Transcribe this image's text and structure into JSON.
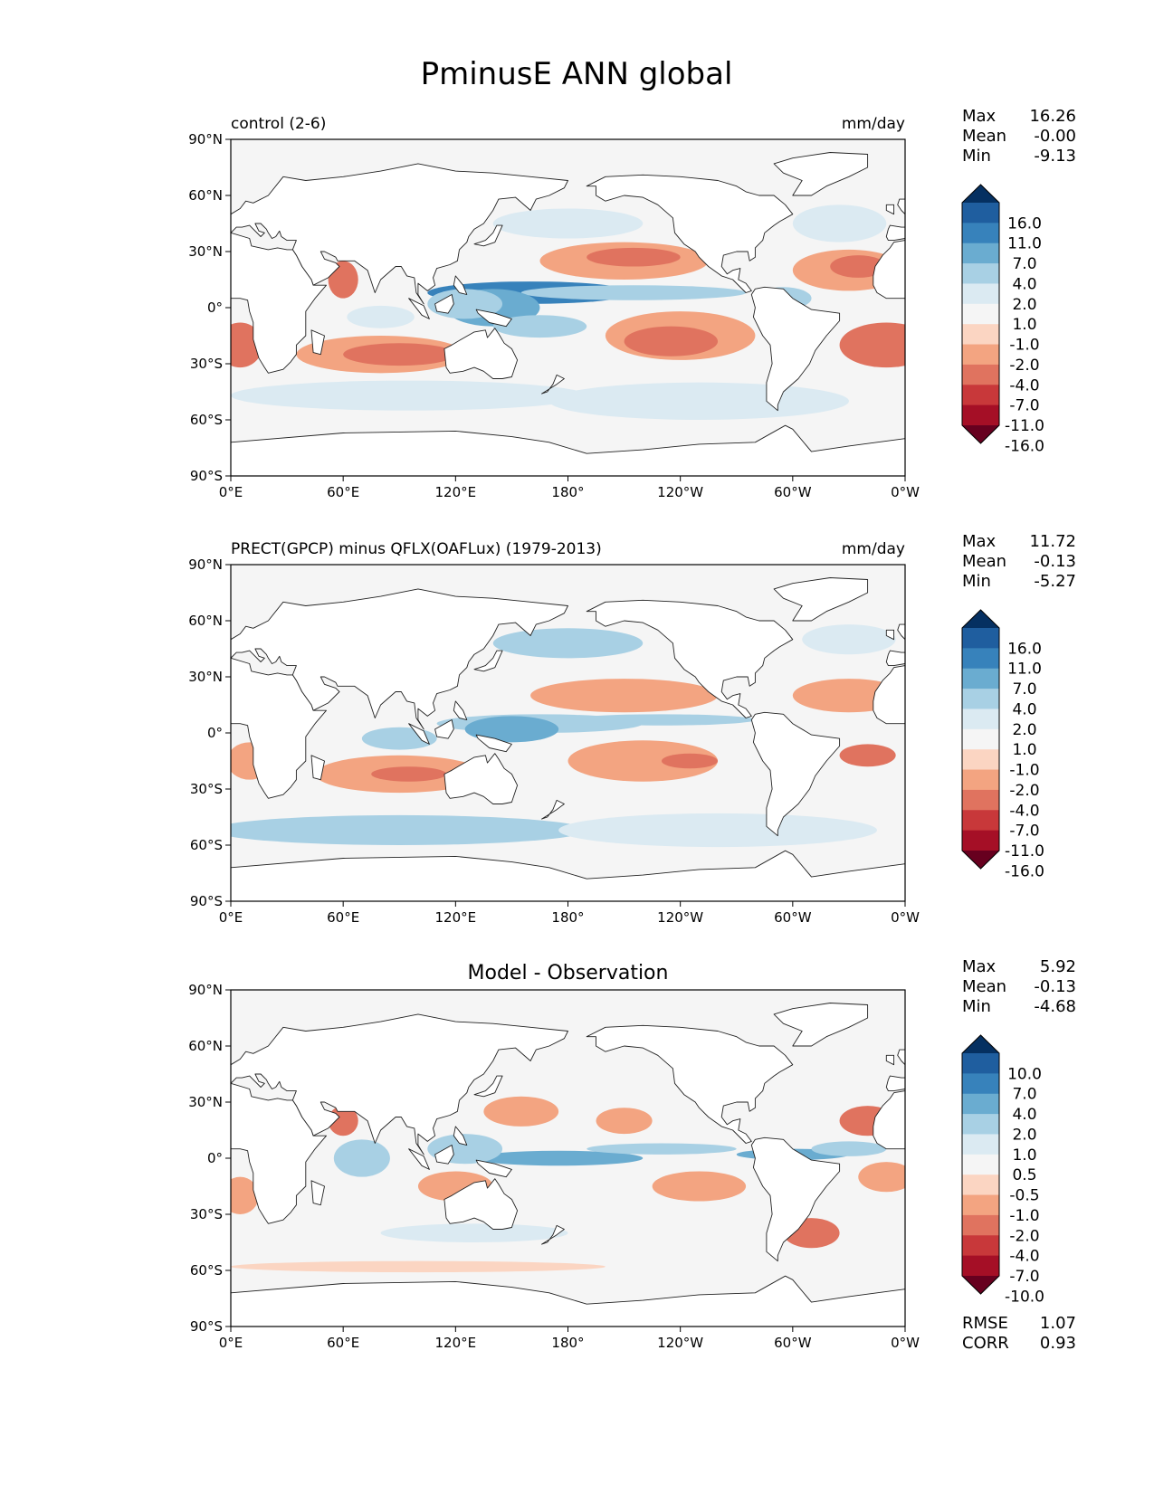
{
  "figure": {
    "title": "PminusE ANN global"
  },
  "colors": {
    "ocean_bg": "#f5f5f5",
    "land": "#ffffff",
    "coast": "#222222",
    "ramp": [
      "#67001f",
      "#a50f26",
      "#c8383a",
      "#e0735f",
      "#f3a481",
      "#fbd5c2",
      "#f5f5f5",
      "#dbeaf2",
      "#a8d0e4",
      "#6aacd0",
      "#3782bb",
      "#1f5e9f",
      "#053061"
    ]
  },
  "x_ticks": [
    "0°E",
    "60°E",
    "120°E",
    "180°",
    "120°W",
    "60°W",
    "0°W"
  ],
  "y_ticks": [
    "90°N",
    "60°N",
    "30°N",
    "0°",
    "30°S",
    "60°S",
    "90°S"
  ],
  "panels": [
    {
      "id": "control",
      "left_title": "control (2-6)",
      "center_title": "",
      "units": "mm/day",
      "stats": [
        [
          "Max",
          "16.26"
        ],
        [
          "Mean",
          "-0.00"
        ],
        [
          "Min",
          "-9.13"
        ]
      ],
      "colorbar": [
        "16.0",
        "11.0",
        "7.0",
        "4.0",
        "2.0",
        "1.0",
        "-1.0",
        "-2.0",
        "-4.0",
        "-7.0",
        "-11.0",
        "-16.0"
      ],
      "extra": []
    },
    {
      "id": "obs",
      "left_title": "PRECT(GPCP) minus QFLX(OAFLux) (1979-2013)",
      "center_title": "",
      "units": "mm/day",
      "stats": [
        [
          "Max",
          "11.72"
        ],
        [
          "Mean",
          "-0.13"
        ],
        [
          "Min",
          "-5.27"
        ]
      ],
      "colorbar": [
        "16.0",
        "11.0",
        "7.0",
        "4.0",
        "2.0",
        "1.0",
        "-1.0",
        "-2.0",
        "-4.0",
        "-7.0",
        "-11.0",
        "-16.0"
      ],
      "extra": []
    },
    {
      "id": "diff",
      "left_title": "",
      "center_title": "Model - Observation",
      "units": "",
      "stats": [
        [
          "Max",
          "5.92"
        ],
        [
          "Mean",
          "-0.13"
        ],
        [
          "Min",
          "-4.68"
        ]
      ],
      "colorbar": [
        "10.0",
        "7.0",
        "4.0",
        "2.0",
        "1.0",
        "0.5",
        "-0.5",
        "-1.0",
        "-2.0",
        "-4.0",
        "-7.0",
        "-10.0"
      ],
      "extra": [
        [
          "RMSE",
          "1.07"
        ],
        [
          "CORR",
          "0.93"
        ]
      ]
    }
  ],
  "chart_data": {
    "type": "heatmap",
    "title": "PminusE ANN global",
    "variable": "PminusE",
    "units": "mm/day",
    "xlim": [
      0,
      360
    ],
    "ylim": [
      -90,
      90
    ],
    "xticks": [
      0,
      60,
      120,
      180,
      240,
      300,
      360
    ],
    "yticks": [
      90,
      60,
      30,
      0,
      -30,
      -60,
      -90
    ],
    "panels": [
      {
        "name": "control (2-6)",
        "max": 16.26,
        "mean": -0.0,
        "min": -9.13,
        "levels": [
          -16,
          -11,
          -7,
          -4,
          -2,
          -1,
          1,
          2,
          4,
          7,
          11,
          16
        ],
        "features": [
          {
            "lon": 160,
            "lat": 8,
            "rx": 55,
            "ry": 6,
            "level": 4
          },
          {
            "lon": 215,
            "lat": 8,
            "rx": 60,
            "ry": 4,
            "level": 2
          },
          {
            "lon": 140,
            "lat": 0,
            "rx": 25,
            "ry": 10,
            "level": 3
          },
          {
            "lon": 125,
            "lat": 2,
            "rx": 20,
            "ry": 8,
            "level": 2
          },
          {
            "lon": 80,
            "lat": -5,
            "rx": 18,
            "ry": 6,
            "level": 1
          },
          {
            "lon": 165,
            "lat": -10,
            "rx": 25,
            "ry": 6,
            "level": 2
          },
          {
            "lon": 95,
            "lat": -47,
            "rx": 95,
            "ry": 8,
            "level": 1
          },
          {
            "lon": 250,
            "lat": -50,
            "rx": 80,
            "ry": 10,
            "level": 1
          },
          {
            "lon": 180,
            "lat": 45,
            "rx": 40,
            "ry": 8,
            "level": 1
          },
          {
            "lon": 325,
            "lat": 45,
            "rx": 25,
            "ry": 10,
            "level": 1
          },
          {
            "lon": 295,
            "lat": 5,
            "rx": 15,
            "ry": 6,
            "level": 2
          },
          {
            "lon": 210,
            "lat": 25,
            "rx": 45,
            "ry": 10,
            "level": -2
          },
          {
            "lon": 215,
            "lat": 27,
            "rx": 25,
            "ry": 5,
            "level": -3
          },
          {
            "lon": 240,
            "lat": -15,
            "rx": 40,
            "ry": 13,
            "level": -2
          },
          {
            "lon": 235,
            "lat": -18,
            "rx": 25,
            "ry": 8,
            "level": -3
          },
          {
            "lon": 330,
            "lat": 20,
            "rx": 30,
            "ry": 11,
            "level": -2
          },
          {
            "lon": 335,
            "lat": 22,
            "rx": 15,
            "ry": 6,
            "level": -3
          },
          {
            "lon": 350,
            "lat": -20,
            "rx": 25,
            "ry": 12,
            "level": -3
          },
          {
            "lon": 5,
            "lat": -20,
            "rx": 12,
            "ry": 12,
            "level": -3
          },
          {
            "lon": 80,
            "lat": -25,
            "rx": 45,
            "ry": 10,
            "level": -2
          },
          {
            "lon": 90,
            "lat": -25,
            "rx": 30,
            "ry": 6,
            "level": -3
          },
          {
            "lon": 60,
            "lat": 15,
            "rx": 8,
            "ry": 10,
            "level": -3
          },
          {
            "lon": 40,
            "lat": 20,
            "rx": 5,
            "ry": 6,
            "level": -4
          }
        ]
      },
      {
        "name": "PRECT(GPCP) minus QFLX(OAFLux) (1979-2013)",
        "max": 11.72,
        "mean": -0.13,
        "min": -5.27,
        "levels": [
          -16,
          -11,
          -7,
          -4,
          -2,
          -1,
          1,
          2,
          4,
          7,
          11,
          16
        ],
        "features": [
          {
            "lon": 165,
            "lat": 5,
            "rx": 55,
            "ry": 5,
            "level": 2
          },
          {
            "lon": 230,
            "lat": 7,
            "rx": 50,
            "ry": 3,
            "level": 2
          },
          {
            "lon": 150,
            "lat": 2,
            "rx": 25,
            "ry": 7,
            "level": 3
          },
          {
            "lon": 90,
            "lat": -3,
            "rx": 20,
            "ry": 6,
            "level": 2
          },
          {
            "lon": 90,
            "lat": -52,
            "rx": 100,
            "ry": 8,
            "level": 2
          },
          {
            "lon": 260,
            "lat": -52,
            "rx": 85,
            "ry": 9,
            "level": 1
          },
          {
            "lon": 180,
            "lat": 48,
            "rx": 40,
            "ry": 8,
            "level": 2
          },
          {
            "lon": 330,
            "lat": 50,
            "rx": 25,
            "ry": 8,
            "level": 1
          },
          {
            "lon": 210,
            "lat": 20,
            "rx": 50,
            "ry": 9,
            "level": -2
          },
          {
            "lon": 220,
            "lat": -15,
            "rx": 40,
            "ry": 11,
            "level": -2
          },
          {
            "lon": 245,
            "lat": -15,
            "rx": 15,
            "ry": 4,
            "level": -3
          },
          {
            "lon": 330,
            "lat": 20,
            "rx": 30,
            "ry": 9,
            "level": -2
          },
          {
            "lon": 340,
            "lat": -12,
            "rx": 15,
            "ry": 6,
            "level": -3
          },
          {
            "lon": 90,
            "lat": -22,
            "rx": 45,
            "ry": 10,
            "level": -2
          },
          {
            "lon": 95,
            "lat": -22,
            "rx": 20,
            "ry": 4,
            "level": -3
          },
          {
            "lon": 10,
            "lat": -15,
            "rx": 12,
            "ry": 10,
            "level": -2
          }
        ]
      },
      {
        "name": "Model - Observation",
        "max": 5.92,
        "mean": -0.13,
        "min": -4.68,
        "rmse": 1.07,
        "corr": 0.93,
        "levels": [
          -10,
          -7,
          -4,
          -2,
          -1,
          -0.5,
          0.5,
          1,
          2,
          4,
          7,
          10
        ],
        "features": [
          {
            "lon": 175,
            "lat": 0,
            "rx": 45,
            "ry": 4,
            "level": 3
          },
          {
            "lon": 230,
            "lat": 5,
            "rx": 40,
            "ry": 3,
            "level": 2
          },
          {
            "lon": 300,
            "lat": 2,
            "rx": 30,
            "ry": 3,
            "level": 3
          },
          {
            "lon": 70,
            "lat": 0,
            "rx": 15,
            "ry": 10,
            "level": 2
          },
          {
            "lon": 125,
            "lat": 5,
            "rx": 20,
            "ry": 8,
            "level": 2
          },
          {
            "lon": 330,
            "lat": 5,
            "rx": 20,
            "ry": 4,
            "level": 2
          },
          {
            "lon": 130,
            "lat": -40,
            "rx": 50,
            "ry": 5,
            "level": 1
          },
          {
            "lon": 60,
            "lat": 20,
            "rx": 8,
            "ry": 8,
            "level": -3
          },
          {
            "lon": 155,
            "lat": 25,
            "rx": 20,
            "ry": 8,
            "level": -2
          },
          {
            "lon": 210,
            "lat": 20,
            "rx": 15,
            "ry": 7,
            "level": -2
          },
          {
            "lon": 250,
            "lat": -15,
            "rx": 25,
            "ry": 8,
            "level": -2
          },
          {
            "lon": 340,
            "lat": 20,
            "rx": 15,
            "ry": 8,
            "level": -3
          },
          {
            "lon": 350,
            "lat": -10,
            "rx": 15,
            "ry": 8,
            "level": -2
          },
          {
            "lon": 5,
            "lat": -20,
            "rx": 10,
            "ry": 10,
            "level": -2
          },
          {
            "lon": 120,
            "lat": -15,
            "rx": 20,
            "ry": 8,
            "level": -2
          },
          {
            "lon": 310,
            "lat": -40,
            "rx": 15,
            "ry": 8,
            "level": -3
          },
          {
            "lon": 100,
            "lat": -58,
            "rx": 100,
            "ry": 3,
            "level": -1
          }
        ]
      }
    ]
  }
}
